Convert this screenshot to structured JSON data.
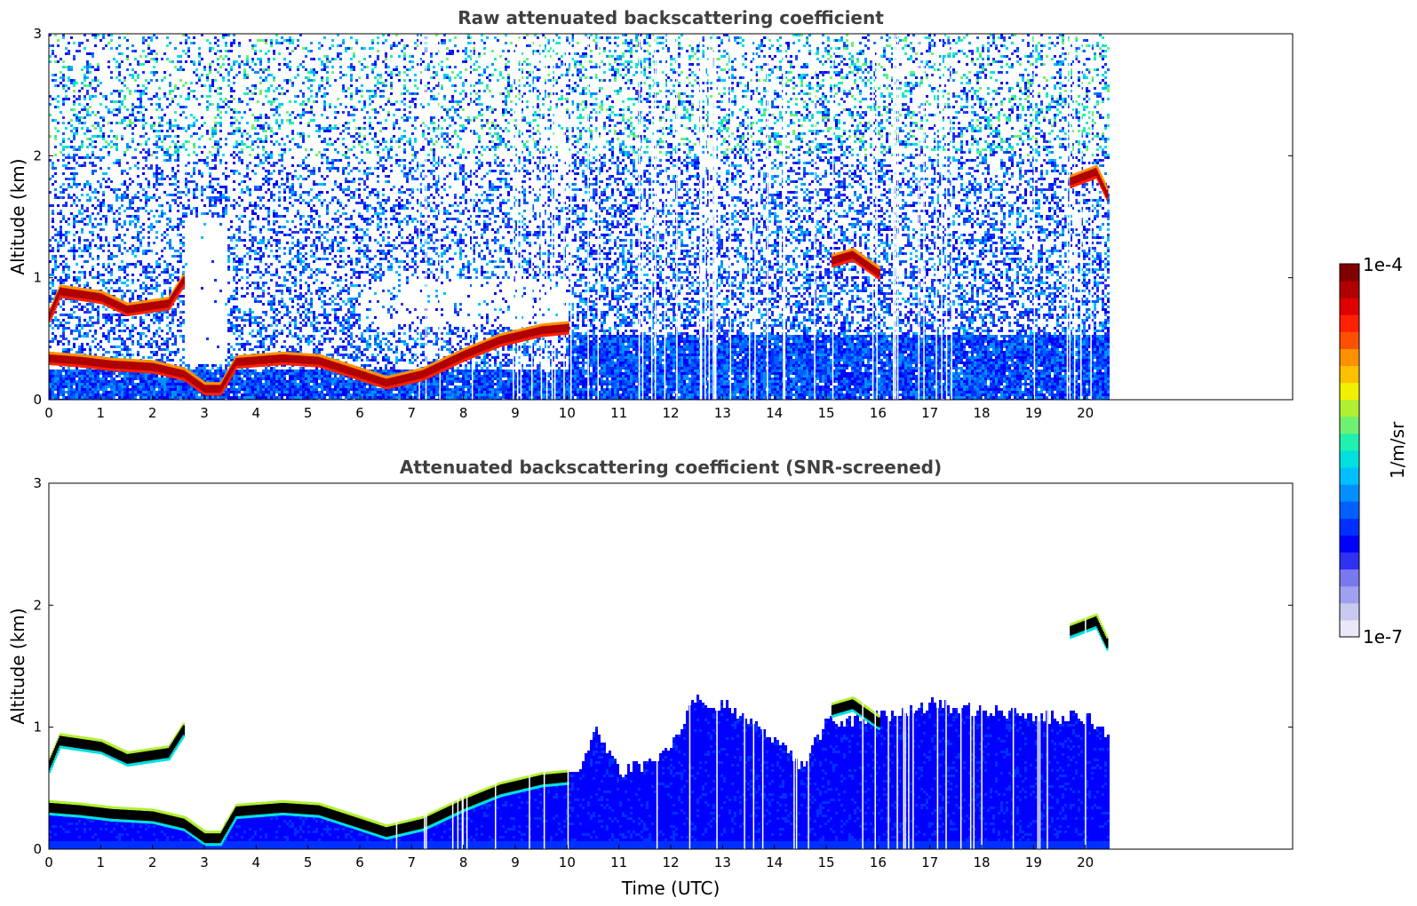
{
  "chart_data": [
    {
      "type": "heatmap",
      "title": "Raw attenuated backscattering coefficient",
      "xlabel": "",
      "ylabel": "Altitude (km)",
      "xlim": [
        0,
        24
      ],
      "ylim": [
        0,
        3
      ],
      "x_ticks": [
        "0",
        "1",
        "2",
        "3",
        "4",
        "5",
        "6",
        "7",
        "8",
        "9",
        "10",
        "11",
        "12",
        "13",
        "14",
        "15",
        "16",
        "17",
        "18",
        "19",
        "20"
      ],
      "y_ticks": [
        "0",
        "1",
        "2",
        "3"
      ],
      "data_end_time": 20.45,
      "features": [
        {
          "label": "boundary-layer aerosol top",
          "points": [
            [
              0,
              0.35
            ],
            [
              0.6,
              0.33
            ],
            [
              1.2,
              0.3
            ],
            [
              2.0,
              0.28
            ],
            [
              2.6,
              0.22
            ],
            [
              3.0,
              0.1
            ],
            [
              3.3,
              0.1
            ],
            [
              3.6,
              0.32
            ],
            [
              4.5,
              0.35
            ],
            [
              5.2,
              0.33
            ],
            [
              6.0,
              0.22
            ],
            [
              6.5,
              0.15
            ],
            [
              7.2,
              0.22
            ],
            [
              8.0,
              0.38
            ],
            [
              8.7,
              0.5
            ],
            [
              9.5,
              0.58
            ],
            [
              10.0,
              0.6
            ]
          ],
          "value": "1e-4"
        },
        {
          "label": "low cloud 0-3 UTC",
          "points": [
            [
              0,
              0.7
            ],
            [
              0.2,
              0.9
            ],
            [
              1.0,
              0.85
            ],
            [
              1.5,
              0.75
            ],
            [
              2.3,
              0.8
            ],
            [
              2.6,
              1.0
            ]
          ],
          "value": "1e-4"
        },
        {
          "label": "cloud 15-16 UTC",
          "points": [
            [
              15.1,
              1.15
            ],
            [
              15.5,
              1.2
            ],
            [
              16.0,
              1.05
            ]
          ],
          "value": "1e-4"
        },
        {
          "label": "cloud 19.7-20.4 UTC",
          "points": [
            [
              19.7,
              1.8
            ],
            [
              20.2,
              1.88
            ],
            [
              20.4,
              1.7
            ]
          ],
          "value": "1e-4"
        }
      ]
    },
    {
      "type": "heatmap",
      "title": "Attenuated backscattering coefficient (SNR-screened)",
      "xlabel": "Time (UTC)",
      "ylabel": "Altitude (km)",
      "xlim": [
        0,
        24
      ],
      "ylim": [
        0,
        3
      ],
      "x_ticks": [
        "0",
        "1",
        "2",
        "3",
        "4",
        "5",
        "6",
        "7",
        "8",
        "9",
        "10",
        "11",
        "12",
        "13",
        "14",
        "15",
        "16",
        "17",
        "18",
        "19",
        "20"
      ],
      "y_ticks": [
        "0",
        "1",
        "2",
        "3"
      ],
      "data_end_time": 20.45,
      "valid_region_top": [
        [
          10.2,
          0.6
        ],
        [
          10.5,
          1.0
        ],
        [
          11,
          0.65
        ],
        [
          11.8,
          0.75
        ],
        [
          12.5,
          1.25
        ],
        [
          13.2,
          1.15
        ],
        [
          13.8,
          0.95
        ],
        [
          14.5,
          0.7
        ],
        [
          15.0,
          1.05
        ],
        [
          16.0,
          1.1
        ],
        [
          17.0,
          1.2
        ],
        [
          18.0,
          1.15
        ],
        [
          19.0,
          1.1
        ],
        [
          20.0,
          1.1
        ],
        [
          20.45,
          0.9
        ]
      ]
    }
  ],
  "colorbar": {
    "label": "1/m/sr",
    "max_label": "1e-4",
    "min_label": "1e-7",
    "colors": [
      "#e8e8f8",
      "#c8c8f0",
      "#a0a0f0",
      "#7878f0",
      "#3030f0",
      "#0000ff",
      "#0030ff",
      "#0060ff",
      "#0090ff",
      "#00c0ff",
      "#00e0e0",
      "#20f0b0",
      "#70f070",
      "#b0f030",
      "#f0f000",
      "#ffc000",
      "#ff9000",
      "#ff5000",
      "#ff2000",
      "#e00000",
      "#b00000",
      "#800000"
    ]
  }
}
